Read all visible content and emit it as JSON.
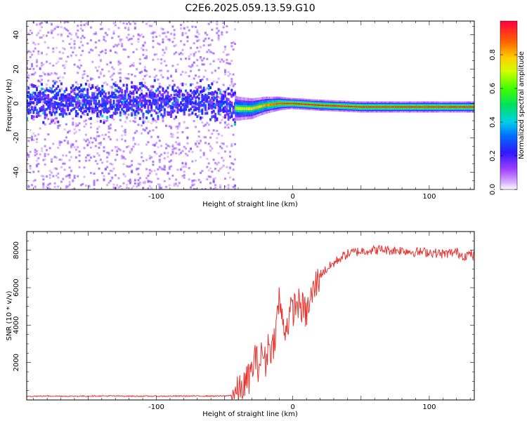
{
  "title": "C2E6.2025.059.13.59.G10",
  "colors": {
    "snr_line": "#e8322e",
    "axis": "#000000",
    "background": "#ffffff"
  },
  "chart_data": [
    {
      "type": "heatmap",
      "xlabel": "Height of straight line (km)",
      "ylabel": "Frequency (Hz)",
      "xlim": [
        -195,
        133
      ],
      "ylim": [
        -50,
        48
      ],
      "xticks": [
        "-100",
        "0",
        "100"
      ],
      "xtick_values": [
        -100,
        0,
        100
      ],
      "yticks": [
        "-40",
        "-20",
        "0",
        "20",
        "40"
      ],
      "ytick_values": [
        -40,
        -20,
        0,
        20,
        40
      ],
      "grid": false,
      "colorbar": {
        "label": "Normalized spectral amplitude",
        "ticks": [
          "0.0",
          "0.2",
          "0.4",
          "0.6",
          "0.8"
        ],
        "tick_values": [
          0.0,
          0.2,
          0.4,
          0.6,
          0.8
        ],
        "range": [
          0,
          1
        ],
        "colormap": "rainbow (magenta to red)"
      },
      "ridge": {
        "heights_km": [
          -195,
          -150,
          -100,
          -60,
          -40,
          -30,
          -20,
          -10,
          0,
          20,
          50,
          80,
          100,
          120,
          133
        ],
        "frequency_hz": [
          1,
          1,
          1,
          1,
          -3,
          -3,
          -1,
          0,
          0,
          -1,
          -2,
          -2,
          -2,
          -2,
          -2
        ]
      },
      "noise_region_end_km": -42
    },
    {
      "type": "line",
      "xlabel": "Height of straight line (km)",
      "ylabel": "SNR (10 * v/v)",
      "xlim": [
        -195,
        133
      ],
      "ylim": [
        0,
        9000
      ],
      "xticks": [
        "-100",
        "0",
        "100"
      ],
      "xtick_values": [
        -100,
        0,
        100
      ],
      "yticks": [
        "2000",
        "4000",
        "6000",
        "8000"
      ],
      "ytick_values": [
        2000,
        4000,
        6000,
        8000
      ],
      "grid": false,
      "series": [
        {
          "x": [
            -195,
            -180,
            -160,
            -140,
            -120,
            -100,
            -80,
            -60,
            -50,
            -45,
            -40,
            -35,
            -30,
            -28,
            -25,
            -22,
            -20,
            -18,
            -15,
            -12,
            -10,
            -8,
            -5,
            -2,
            0,
            3,
            6,
            10,
            15,
            20,
            25,
            30,
            35,
            40,
            45,
            50,
            55,
            60,
            65,
            70,
            80,
            90,
            100,
            110,
            115,
            120,
            125,
            130,
            133
          ],
          "y": [
            200,
            210,
            200,
            215,
            205,
            200,
            210,
            210,
            210,
            250,
            400,
            800,
            1500,
            2300,
            1800,
            2600,
            1900,
            3000,
            2700,
            4000,
            5500,
            4300,
            3800,
            4600,
            4800,
            5200,
            5000,
            4600,
            5800,
            6700,
            7000,
            7300,
            7600,
            7800,
            7900,
            7950,
            8000,
            8000,
            8050,
            8000,
            8000,
            7900,
            7900,
            7800,
            7850,
            7900,
            7700,
            7800,
            7700
          ]
        }
      ]
    }
  ]
}
